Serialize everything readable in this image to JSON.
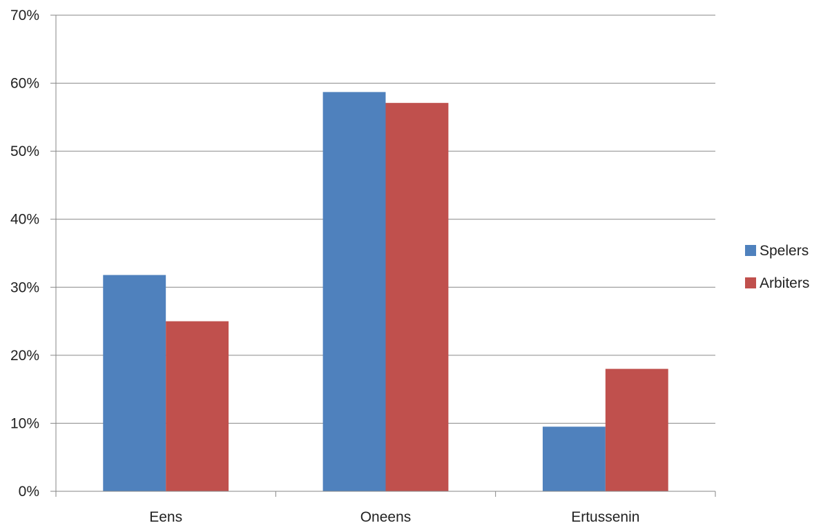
{
  "chart_data": {
    "type": "bar",
    "categories": [
      "Eens",
      "Oneens",
      "Ertussenin"
    ],
    "series": [
      {
        "name": "Spelers",
        "values": [
          31.8,
          58.7,
          9.5
        ],
        "color": "#4F81BD"
      },
      {
        "name": "Arbiters",
        "values": [
          25.0,
          57.1,
          18.0
        ],
        "color": "#C0504D"
      }
    ],
    "yticks": [
      "0%",
      "10%",
      "20%",
      "30%",
      "40%",
      "50%",
      "60%",
      "70%"
    ],
    "ylim": [
      0,
      70
    ],
    "grid": true,
    "legend": "right",
    "title": "",
    "xlabel": "",
    "ylabel": ""
  }
}
